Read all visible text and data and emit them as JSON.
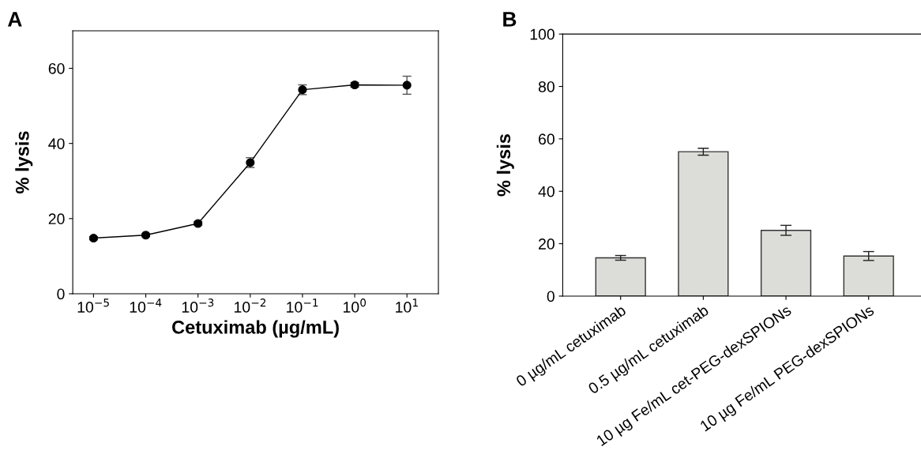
{
  "chart_data": [
    {
      "type": "line",
      "annotations": [
        "A"
      ],
      "xlabel": "Cetuximab (µg/mL)",
      "ylabel": "% lysis",
      "log": "x",
      "marker": "circle",
      "line_style": "solid",
      "grid": false,
      "x": [
        1e-05,
        0.0001,
        0.001,
        0.01,
        0.1,
        1,
        10
      ],
      "series": [
        {
          "color": "#000000",
          "values": [
            14.8,
            15.6,
            18.7,
            34.9,
            54.3,
            55.6,
            55.5
          ],
          "errors": [
            0.4,
            0.4,
            0.5,
            1.3,
            1.3,
            0.6,
            2.4
          ]
        }
      ],
      "xlim": [
        4e-06,
        40
      ],
      "ylim": [
        0,
        70
      ],
      "xticks": [
        {
          "value": 1e-05,
          "label": "10$^{−5}$"
        },
        {
          "value": 0.0001,
          "label": "10$^{−4}$"
        },
        {
          "value": 0.001,
          "label": "10$^{−3}$"
        },
        {
          "value": 0.01,
          "label": "10$^{−2}$"
        },
        {
          "value": 0.1,
          "label": "10$^{−1}$"
        },
        {
          "value": 1,
          "label": "10$^{0}$"
        },
        {
          "value": 10,
          "label": "10$^{1}$"
        }
      ],
      "yticks": [
        0,
        20,
        40,
        60
      ]
    },
    {
      "type": "bar",
      "annotations": [
        "B"
      ],
      "ylabel": "% lysis",
      "grid": false,
      "categories": [
        "0 µg/mL cetuximab",
        "0.5 µg/mL cetuximab",
        "10 µg Fe/mL cet-PEG-dexSPIONs",
        "10 µg Fe/mL PEG-dexSPIONs"
      ],
      "series": [
        {
          "color": "#dcdcd8",
          "values": [
            14.6,
            55.1,
            25.1,
            15.3
          ],
          "errors": [
            0.9,
            1.3,
            1.9,
            1.7
          ]
        }
      ],
      "ylim": [
        0,
        100
      ],
      "yticks": [
        0,
        20,
        40,
        60,
        80,
        100
      ]
    }
  ]
}
